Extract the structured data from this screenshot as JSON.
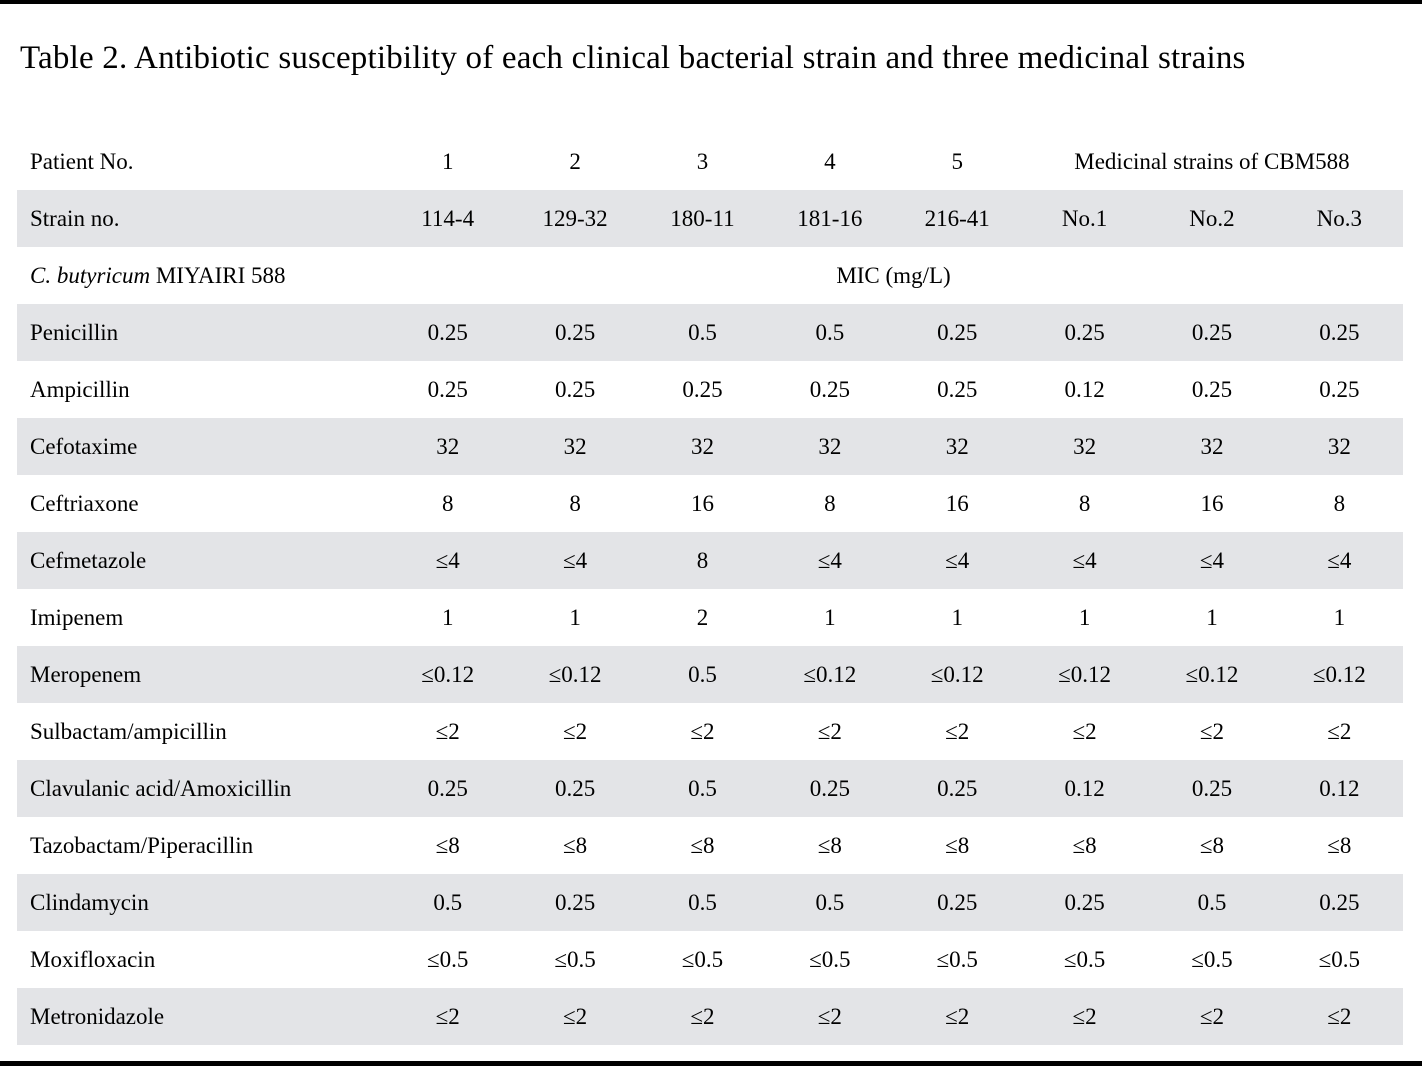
{
  "title": "Table 2. Antibiotic susceptibility of each clinical bacterial strain and three medicinal strains",
  "table": {
    "patient_row": {
      "label": "Patient No.",
      "values": [
        "1",
        "2",
        "3",
        "4",
        "5"
      ],
      "group_header": "Medicinal strains of CBM588"
    },
    "strain_row": {
      "label": "Strain no.",
      "values": [
        "114-4",
        "129-32",
        "180-11",
        "181-16",
        "216-41",
        "No.1",
        "No.2",
        "No.3"
      ]
    },
    "mic_row": {
      "label_italic": "C. butyricum",
      "label_rest": " MIYAIRI 588",
      "mic_header": "MIC (mg/L)"
    },
    "antibiotics": [
      {
        "name": "Penicillin",
        "values": [
          "0.25",
          "0.25",
          "0.5",
          "0.5",
          "0.25",
          "0.25",
          "0.25",
          "0.25"
        ]
      },
      {
        "name": "Ampicillin",
        "values": [
          "0.25",
          "0.25",
          "0.25",
          "0.25",
          "0.25",
          "0.12",
          "0.25",
          "0.25"
        ]
      },
      {
        "name": "Cefotaxime",
        "values": [
          "32",
          "32",
          "32",
          "32",
          "32",
          "32",
          "32",
          "32"
        ]
      },
      {
        "name": "Ceftriaxone",
        "values": [
          "8",
          "8",
          "16",
          "8",
          "16",
          "8",
          "16",
          "8"
        ]
      },
      {
        "name": "Cefmetazole",
        "values": [
          "≤4",
          "≤4",
          "8",
          "≤4",
          "≤4",
          "≤4",
          "≤4",
          "≤4"
        ]
      },
      {
        "name": "Imipenem",
        "values": [
          "1",
          "1",
          "2",
          "1",
          "1",
          "1",
          "1",
          "1"
        ]
      },
      {
        "name": "Meropenem",
        "values": [
          "≤0.12",
          "≤0.12",
          "0.5",
          "≤0.12",
          "≤0.12",
          "≤0.12",
          "≤0.12",
          "≤0.12"
        ]
      },
      {
        "name": "Sulbactam/ampicillin",
        "values": [
          "≤2",
          "≤2",
          "≤2",
          "≤2",
          "≤2",
          "≤2",
          "≤2",
          "≤2"
        ]
      },
      {
        "name": "Clavulanic acid/Amoxicillin",
        "values": [
          "0.25",
          "0.25",
          "0.5",
          "0.25",
          "0.25",
          "0.12",
          "0.25",
          "0.12"
        ]
      },
      {
        "name": "Tazobactam/Piperacillin",
        "values": [
          "≤8",
          "≤8",
          "≤8",
          "≤8",
          "≤8",
          "≤8",
          "≤8",
          "≤8"
        ]
      },
      {
        "name": "Clindamycin",
        "values": [
          "0.5",
          "0.25",
          "0.5",
          "0.5",
          "0.25",
          "0.25",
          "0.5",
          "0.25"
        ]
      },
      {
        "name": "Moxifloxacin",
        "values": [
          "≤0.5",
          "≤0.5",
          "≤0.5",
          "≤0.5",
          "≤0.5",
          "≤0.5",
          "≤0.5",
          "≤0.5"
        ]
      },
      {
        "name": "Metronidazole",
        "values": [
          "≤2",
          "≤2",
          "≤2",
          "≤2",
          "≤2",
          "≤2",
          "≤2",
          "≤2"
        ]
      }
    ]
  },
  "colors": {
    "row_shade": "#e3e4e7",
    "text": "#000000",
    "edge_bar": "#000000"
  }
}
